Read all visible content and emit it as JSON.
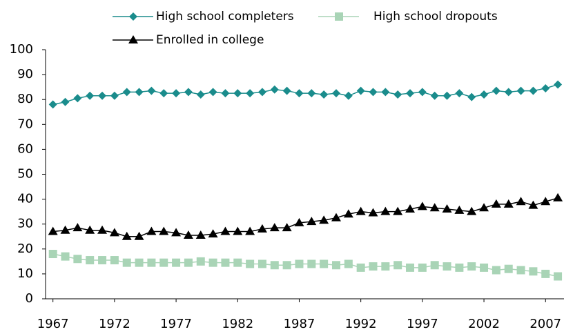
{
  "chart_data": {
    "type": "line",
    "x": [
      1967,
      1968,
      1969,
      1970,
      1971,
      1972,
      1973,
      1974,
      1975,
      1976,
      1977,
      1978,
      1979,
      1980,
      1981,
      1982,
      1983,
      1984,
      1985,
      1986,
      1987,
      1988,
      1989,
      1990,
      1991,
      1992,
      1993,
      1994,
      1995,
      1996,
      1997,
      1998,
      1999,
      2000,
      2001,
      2002,
      2003,
      2004,
      2005,
      2006,
      2007,
      2008
    ],
    "series": [
      {
        "name": "High school completers",
        "color": "#1a8c8c",
        "marker": "diamond",
        "values": [
          78,
          79,
          80.5,
          81.5,
          81.5,
          81.5,
          83,
          83,
          83.5,
          82.5,
          82.5,
          83,
          82,
          83,
          82.5,
          82.5,
          82.5,
          83,
          84,
          83.5,
          82.5,
          82.5,
          82,
          82.5,
          81.5,
          83.5,
          83,
          83,
          82,
          82.5,
          83,
          81.5,
          81.5,
          82.5,
          81,
          82,
          83.5,
          83,
          83.5,
          83.5,
          84.5,
          86
        ]
      },
      {
        "name": "High school dropouts",
        "color": "#a9d4b6",
        "marker": "square",
        "values": [
          18,
          17,
          16,
          15.5,
          15.5,
          15.5,
          14.5,
          14.5,
          14.5,
          14.5,
          14.5,
          14.5,
          15,
          14.5,
          14.5,
          14.5,
          14,
          14,
          13.5,
          13.5,
          14,
          14,
          14,
          13.5,
          14,
          12.5,
          13,
          13,
          13.5,
          12.5,
          12.5,
          13.5,
          13,
          12.5,
          13,
          12.5,
          11.5,
          12,
          11.5,
          11,
          10,
          9
        ]
      },
      {
        "name": "Enrolled in college",
        "color": "#000000",
        "marker": "triangle",
        "values": [
          27,
          27.5,
          28.5,
          27.5,
          27.5,
          26.5,
          25,
          25,
          27,
          27,
          26.5,
          25.5,
          25.5,
          26,
          27,
          27,
          27,
          28,
          28.5,
          28.5,
          30.5,
          31,
          31.5,
          32.5,
          34,
          35,
          34.5,
          35,
          35,
          36,
          37,
          36.5,
          36,
          35.5,
          35,
          36.5,
          38,
          38,
          39,
          37.5,
          39,
          40.5
        ]
      }
    ],
    "xlim": [
      1966.4,
      2008.5
    ],
    "xticks": [
      1967,
      1972,
      1977,
      1982,
      1987,
      1992,
      1997,
      2002,
      2007
    ],
    "ylim": [
      0,
      100
    ],
    "yticks": [
      0,
      10,
      20,
      30,
      40,
      50,
      60,
      70,
      80,
      90,
      100
    ],
    "grid": false
  }
}
